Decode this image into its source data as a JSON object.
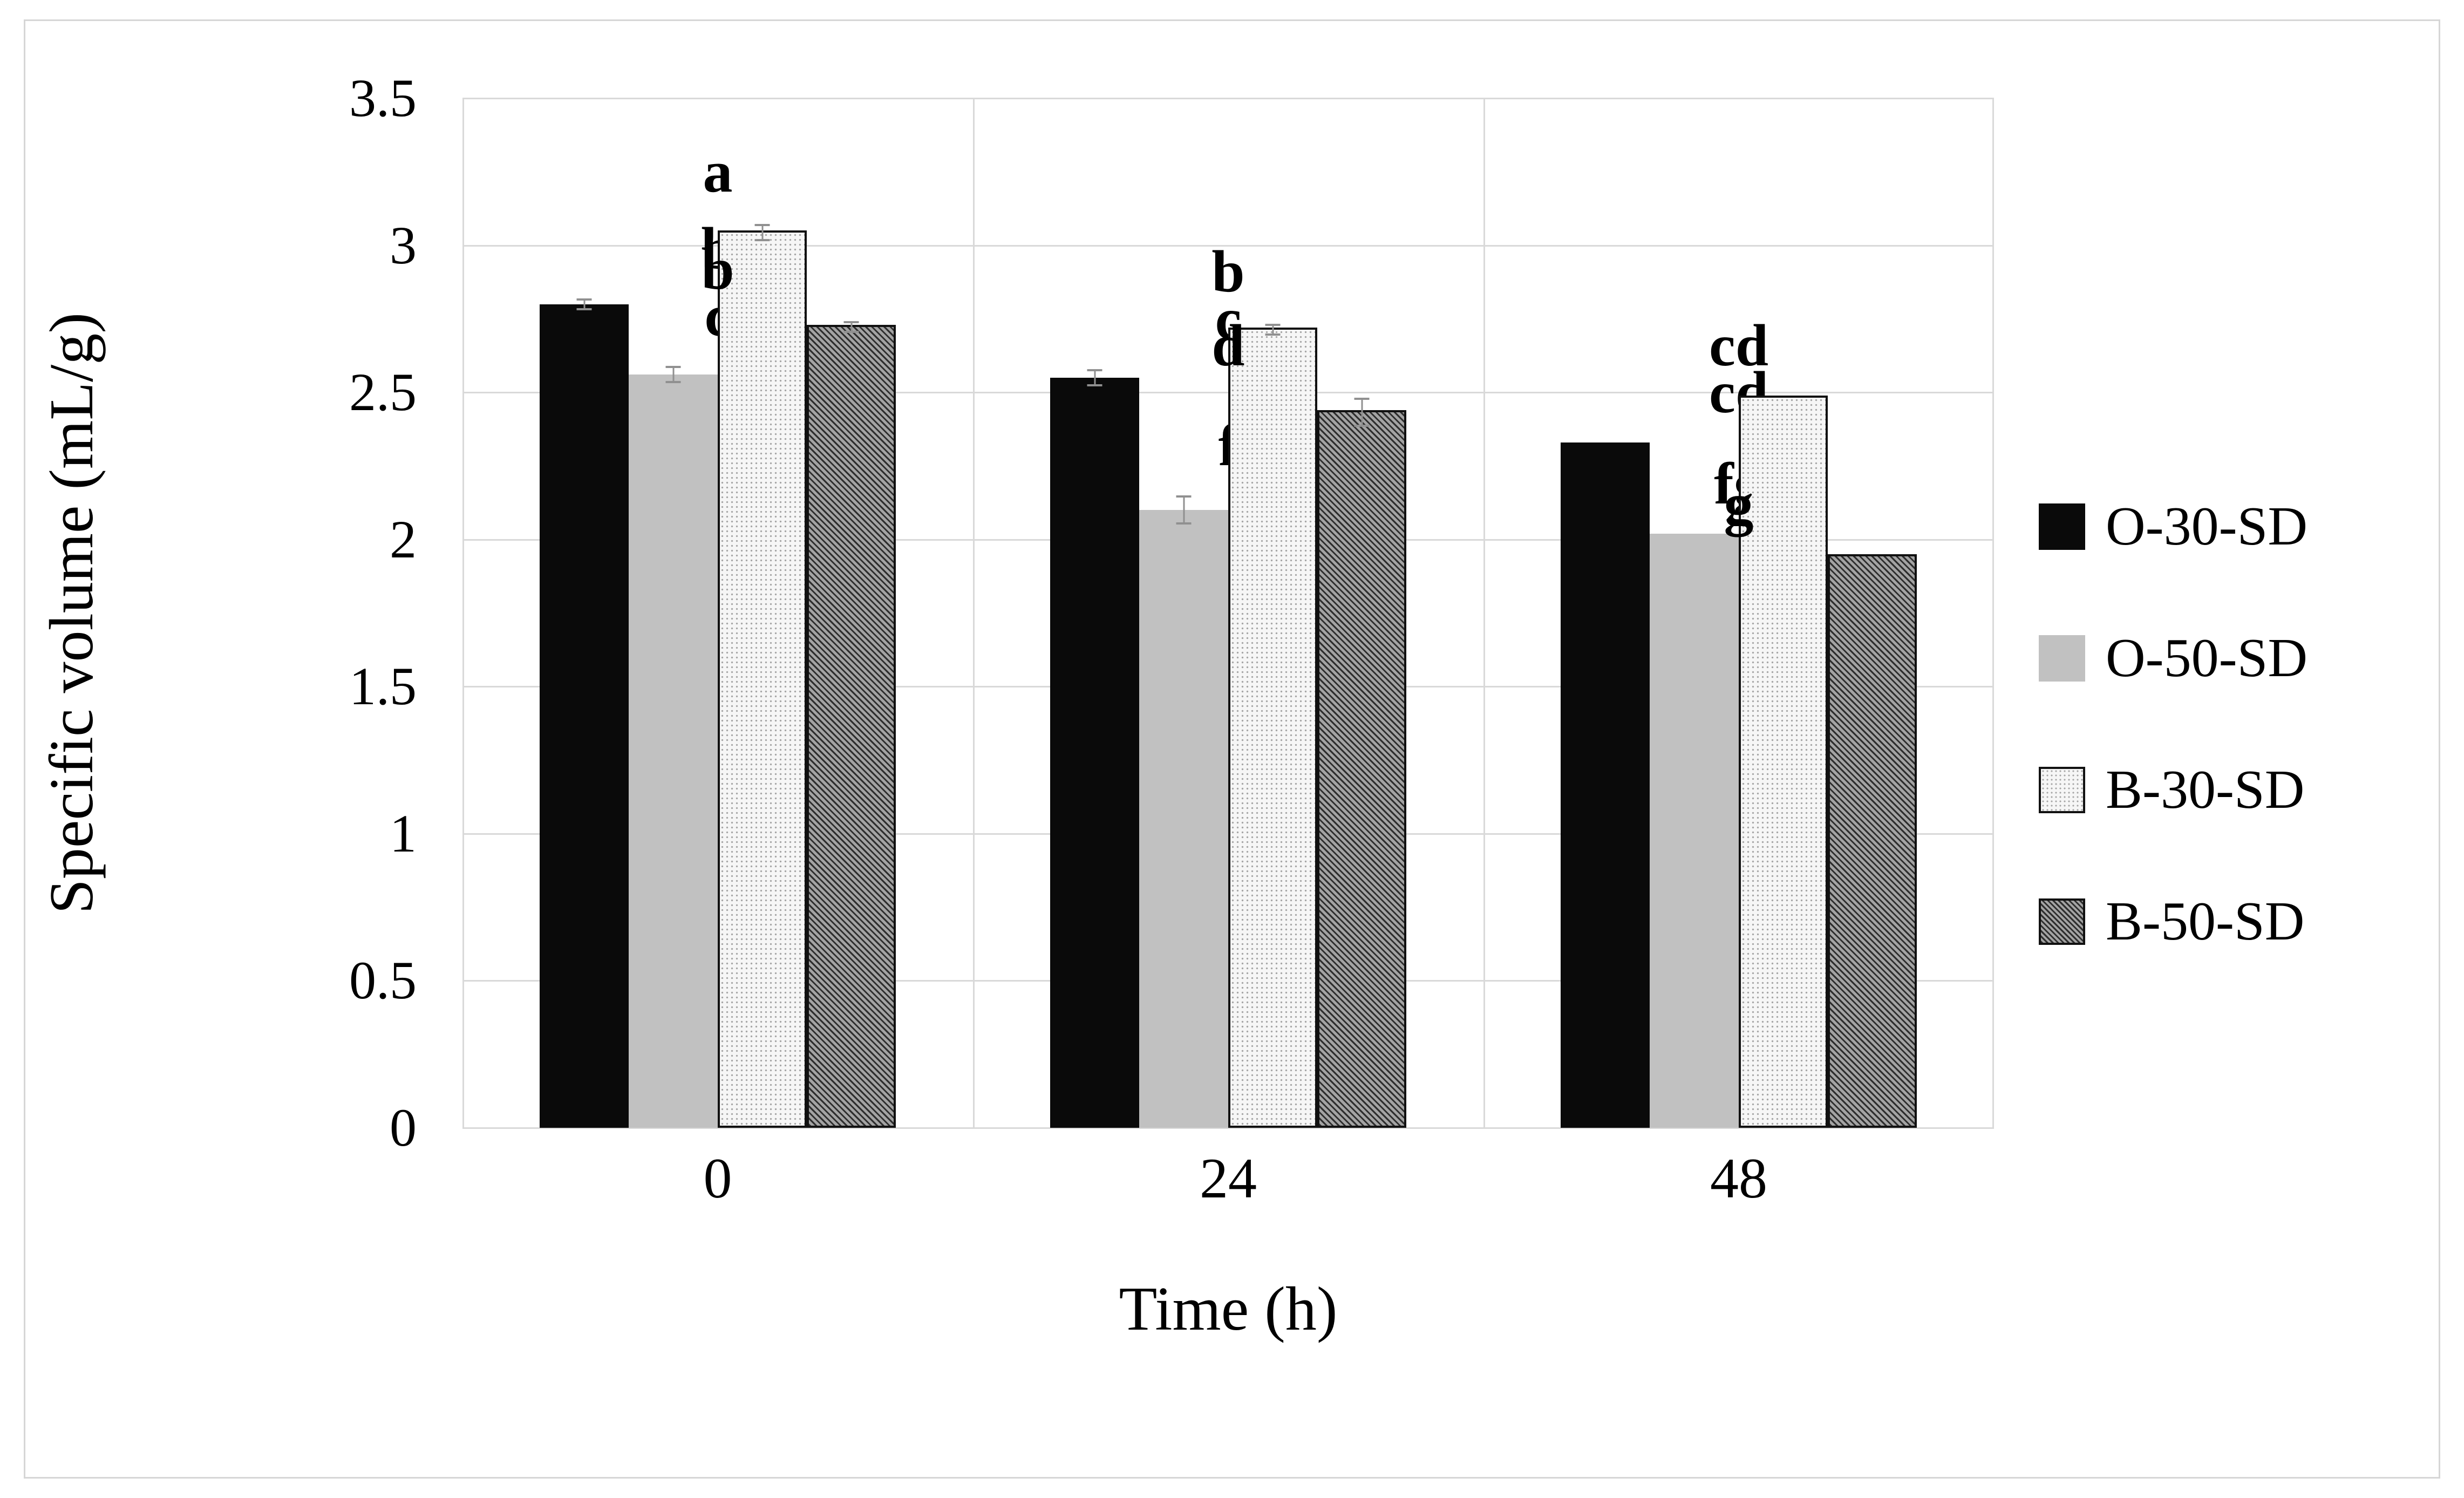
{
  "figure": {
    "background": "#ffffff",
    "border_color": "#d6d6d6",
    "gridline_color": "#d9d9d9",
    "error_bar_color": "#909090"
  },
  "chart_data": {
    "type": "bar",
    "title": "",
    "xlabel": "Time (h)",
    "ylabel": "Specific volume (mL/g)",
    "categories": [
      "0",
      "24",
      "48"
    ],
    "ylim": [
      0,
      3.5
    ],
    "ytick_values": [
      3.5,
      3,
      2.5,
      2,
      1.5,
      1,
      0.5,
      0
    ],
    "ytick_labels": [
      "3.5",
      "3",
      "2.5",
      "2",
      "1.5",
      "1",
      "0.5",
      "0"
    ],
    "grid": true,
    "legend_position": "right",
    "series": [
      {
        "name": "O-30-SD",
        "style": "solid-black",
        "color": "#0a0a0a",
        "values": [
          2.8,
          2.55,
          2.33
        ],
        "errors": [
          0.02,
          0.03,
          0
        ],
        "letters": [
          "b",
          "c",
          "cd"
        ]
      },
      {
        "name": "O-50-SD",
        "style": "solid-gray",
        "color": "#c1c1c1",
        "values": [
          2.56,
          2.1,
          2.02
        ],
        "errors": [
          0.03,
          0.05,
          0
        ],
        "letters": [
          "c",
          "f",
          "fg"
        ]
      },
      {
        "name": "B-30-SD",
        "style": "dot-pattern-light",
        "color": "#f6f6f6",
        "values": [
          3.05,
          2.72,
          2.49
        ],
        "errors": [
          0.03,
          0.02,
          0
        ],
        "letters": [
          "a",
          "b",
          "cd"
        ]
      },
      {
        "name": "B-50-SD",
        "style": "diagonal-hatch-dark",
        "color": "#6b6b6b",
        "values": [
          2.73,
          2.44,
          1.95
        ],
        "errors": [
          0.02,
          0.05,
          0
        ],
        "letters": [
          "b",
          "d",
          "g"
        ]
      }
    ]
  }
}
